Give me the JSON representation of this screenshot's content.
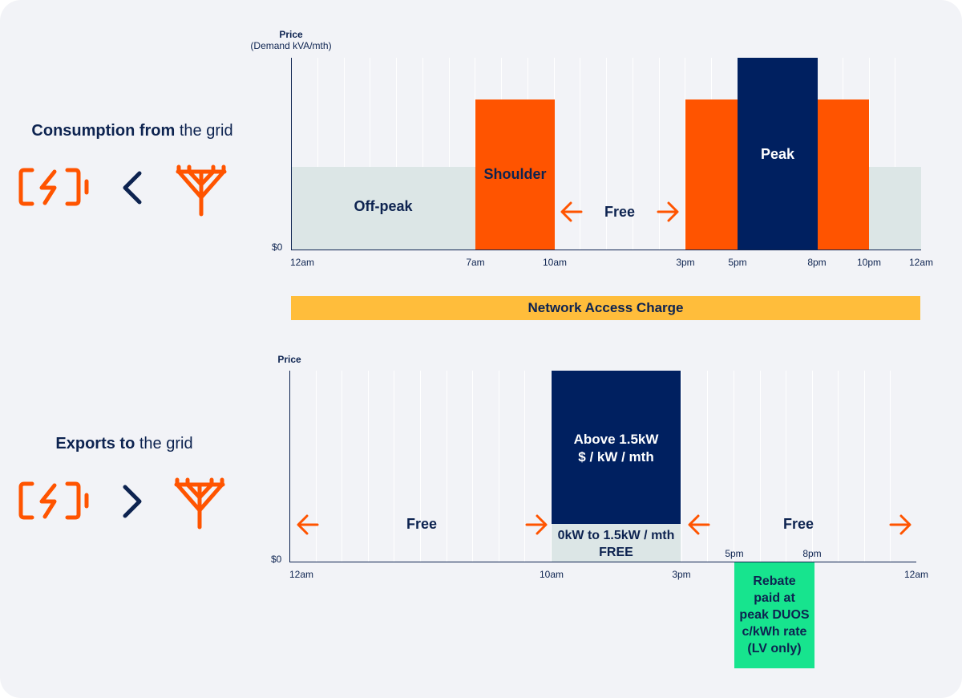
{
  "colors": {
    "navy": "#0d2350",
    "orange": "#ff5400",
    "offpeak": "#dce6e6",
    "yellow": "#ffbd3b",
    "green": "#17e48e",
    "background": "#f2f3f7"
  },
  "consumption": {
    "title_bold": "Consumption from",
    "title_rest": " the grid",
    "icons": [
      "battery-icon",
      "less-than-icon",
      "power-pole-icon"
    ],
    "axis_title": "Price",
    "axis_subtitle": "(Demand kVA/mth)",
    "zero_label": "$0",
    "ticks": [
      "12am",
      "7am",
      "10am",
      "3pm",
      "5pm",
      "8pm",
      "10pm",
      "12am"
    ],
    "labels": {
      "offpeak": "Off-peak",
      "shoulder": "Shoulder",
      "free": "Free",
      "peak": "Peak"
    }
  },
  "network_access_charge": "Network Access Charge",
  "exports": {
    "title_bold": "Exports to",
    "title_rest": " the grid",
    "icons": [
      "battery-icon",
      "greater-than-icon",
      "power-pole-icon"
    ],
    "axis_title": "Price",
    "zero_label": "$0",
    "ticks": [
      "12am",
      "10am",
      "3pm",
      "12am"
    ],
    "inner_ticks": [
      "5pm",
      "8pm"
    ],
    "labels": {
      "free_left": "Free",
      "above_line1": "Above 1.5kW",
      "above_line2": "$ / kW / mth",
      "below_line1": "0kW to 1.5kW / mth",
      "below_line2": "FREE",
      "free_right": "Free"
    },
    "rebate_lines": [
      "Rebate",
      "paid at",
      "peak DUOS",
      "c/kWh rate",
      "(LV only)"
    ]
  }
}
